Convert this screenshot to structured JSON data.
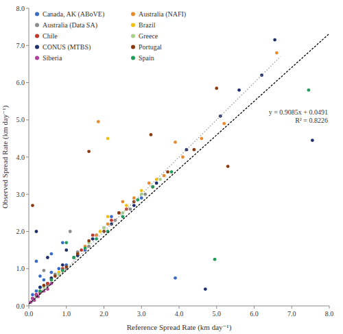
{
  "chart_data": {
    "type": "scatter",
    "x_label": "Reference Spread Rate (km day⁻¹)",
    "y_label": "Observed Spread Rate (km day⁻¹)",
    "xlim": [
      0,
      8
    ],
    "ylim": [
      0,
      8
    ],
    "xticks": [
      {
        "value": 0,
        "label": "0.0"
      },
      {
        "value": 1,
        "label": "1.0"
      },
      {
        "value": 2,
        "label": "2.0"
      },
      {
        "value": 3,
        "label": "3.0"
      },
      {
        "value": 4,
        "label": "4.0"
      },
      {
        "value": 5,
        "label": "5.0"
      },
      {
        "value": 6,
        "label": "6.0"
      },
      {
        "value": 7,
        "label": "7.0"
      },
      {
        "value": 8,
        "label": "8.0"
      }
    ],
    "yticks": [
      {
        "value": 0,
        "label": "0.0"
      },
      {
        "value": 1,
        "label": "1.0"
      },
      {
        "value": 2,
        "label": "2.0"
      },
      {
        "value": 3,
        "label": "3.0"
      },
      {
        "value": 4,
        "label": "4.0"
      },
      {
        "value": 5,
        "label": "5.0"
      },
      {
        "value": 6,
        "label": "6.0"
      },
      {
        "value": 7,
        "label": "7.0"
      },
      {
        "value": 8,
        "label": "8.0"
      }
    ],
    "grid": false,
    "legend": "upper-left",
    "marker": "circle",
    "annotations": [
      "y = 0.9085x + 0.0491",
      "R² = 0.8226"
    ],
    "reference_line": {
      "x": [
        0,
        6.7
      ],
      "values": [
        0,
        6.7
      ],
      "color": "#9a9a9a",
      "line_style": "dotted"
    },
    "trendline": {
      "x": [
        0,
        8
      ],
      "values": [
        0.0491,
        7.3171
      ],
      "color": "#000000",
      "line_style": "dashed"
    },
    "series": [
      {
        "name": "Canada, AK (ABoVE)",
        "color": "#3a6bc9",
        "x": [
          0.1,
          0.2,
          0.3,
          0.4,
          0.5,
          0.6,
          0.8,
          1.0,
          1.2,
          1.5,
          0.3,
          0.6,
          1.8,
          2.2,
          3.0,
          3.9,
          0.2,
          0.9
        ],
        "values": [
          0.3,
          0.4,
          0.5,
          0.7,
          0.6,
          0.9,
          1.0,
          1.1,
          1.3,
          1.5,
          0.8,
          1.4,
          1.9,
          2.4,
          2.9,
          0.75,
          1.2,
          1.7
        ]
      },
      {
        "name": "Australia (NAFI)",
        "color": "#e88b2e",
        "x": [
          0.3,
          0.6,
          0.9,
          1.2,
          1.5,
          1.8,
          2.1,
          2.4,
          2.8,
          3.2,
          3.6,
          4.1,
          4.6,
          5.2,
          6.6,
          1.85,
          2.5,
          3.9
        ],
        "values": [
          0.35,
          0.7,
          0.95,
          1.3,
          1.6,
          1.9,
          2.2,
          2.5,
          2.9,
          3.3,
          3.5,
          4.0,
          4.5,
          4.9,
          6.8,
          4.95,
          2.8,
          4.4
        ]
      },
      {
        "name": "Australia (Data SA)",
        "color": "#8c8c8c",
        "x": [
          0.2,
          0.5,
          0.7,
          1.0,
          1.3,
          1.6,
          2.0,
          2.3,
          2.7,
          3.1,
          1.1,
          0.4
        ],
        "values": [
          0.25,
          0.55,
          0.85,
          1.0,
          1.45,
          1.6,
          2.1,
          2.3,
          2.6,
          3.0,
          2.0,
          0.95
        ]
      },
      {
        "name": "Brazil",
        "color": "#f2c012",
        "x": [
          0.3,
          0.8,
          1.3,
          1.9,
          2.1,
          2.6,
          3.0,
          3.4,
          2.1
        ],
        "values": [
          0.4,
          0.9,
          1.4,
          2.0,
          2.4,
          2.7,
          3.1,
          3.4,
          4.5
        ]
      },
      {
        "name": "Chile",
        "color": "#c0392b",
        "x": [
          0.2,
          0.5,
          0.9,
          1.4,
          1.7,
          2.2,
          2.6,
          3.3
        ],
        "values": [
          0.3,
          0.6,
          1.0,
          1.5,
          1.9,
          2.3,
          2.6,
          3.2
        ]
      },
      {
        "name": "Greece",
        "color": "#a8d08d",
        "x": [
          0.4,
          0.8,
          1.2,
          1.6,
          2.0,
          2.5,
          3.0,
          3.5
        ],
        "values": [
          0.5,
          0.85,
          1.3,
          1.7,
          2.1,
          2.5,
          3.0,
          3.4
        ]
      },
      {
        "name": "CONUS (MTBS)",
        "color": "#1f2f6b",
        "x": [
          0.1,
          0.3,
          0.6,
          0.9,
          1.3,
          1.7,
          2.2,
          2.8,
          3.4,
          4.2,
          5.1,
          5.6,
          6.2,
          6.55,
          7.55,
          4.7,
          0.2,
          1.0,
          0.5
        ],
        "values": [
          0.2,
          0.5,
          0.75,
          1.1,
          1.35,
          1.8,
          2.2,
          2.7,
          3.3,
          4.2,
          5.1,
          5.8,
          6.2,
          7.15,
          4.45,
          0.45,
          2.0,
          1.5,
          1.3
        ]
      },
      {
        "name": "Portugal",
        "color": "#8b3a0f",
        "x": [
          0.2,
          0.4,
          0.7,
          1.0,
          1.3,
          1.6,
          2.0,
          2.4,
          2.8,
          3.25,
          3.7,
          4.4,
          5.0,
          5.3,
          0.1,
          1.6
        ],
        "values": [
          0.3,
          0.55,
          0.8,
          1.05,
          1.4,
          1.75,
          2.0,
          2.5,
          2.8,
          4.6,
          3.6,
          4.2,
          5.85,
          3.75,
          2.7,
          4.15
        ]
      },
      {
        "name": "Siberia",
        "color": "#b0409a",
        "x": [
          0.05,
          0.1,
          0.15,
          0.2,
          0.25,
          0.3,
          0.4,
          0.5,
          0.6
        ],
        "values": [
          0.1,
          0.2,
          0.15,
          0.3,
          0.25,
          0.35,
          0.4,
          0.45,
          0.6
        ]
      },
      {
        "name": "Spain",
        "color": "#1e9e5a",
        "x": [
          0.3,
          0.6,
          0.9,
          1.2,
          1.5,
          1.8,
          2.1,
          2.5,
          2.9,
          3.3,
          3.8,
          4.95,
          7.45,
          1.0
        ],
        "values": [
          0.4,
          0.7,
          0.95,
          1.3,
          1.55,
          1.8,
          2.0,
          2.4,
          2.85,
          3.2,
          3.6,
          1.25,
          5.8,
          1.7
        ]
      }
    ]
  }
}
